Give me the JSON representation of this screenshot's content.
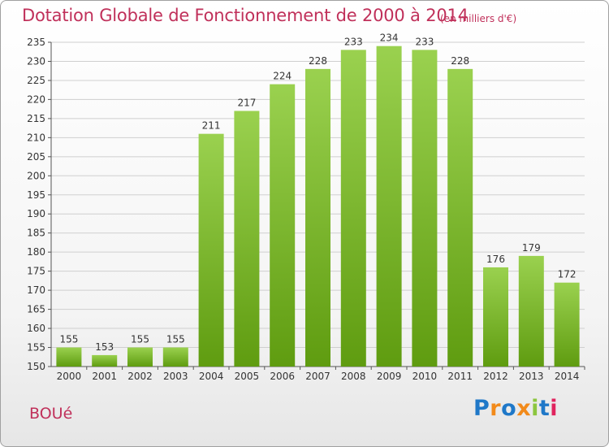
{
  "header": {
    "title": "Dotation Globale de Fonctionnement de 2000 à 2014",
    "unit": "(en milliers d'€)"
  },
  "footer": {
    "commune": "BOUé",
    "logo": "Proxiti",
    "logo_letters": [
      {
        "char": "P",
        "color": "#1f78c8"
      },
      {
        "char": "r",
        "color": "#f28a1a"
      },
      {
        "char": "o",
        "color": "#1f78c8"
      },
      {
        "char": "x",
        "color": "#f28a1a"
      },
      {
        "char": "i",
        "color": "#8cc63f"
      },
      {
        "char": "t",
        "color": "#1f78c8"
      },
      {
        "char": "i",
        "color": "#e0245e"
      }
    ]
  },
  "colors": {
    "title": "#c0305a",
    "bar_top": "#9ad14f",
    "bar_bottom": "#5f9c10",
    "grid": "#cfcfcf"
  },
  "chart_data": {
    "type": "bar",
    "title": "Dotation Globale de Fonctionnement de 2000 à 2014",
    "subtitle": "(en milliers d'€)",
    "categories": [
      "2000",
      "2001",
      "2002",
      "2003",
      "2004",
      "2005",
      "2006",
      "2007",
      "2008",
      "2009",
      "2010",
      "2011",
      "2012",
      "2013",
      "2014"
    ],
    "values": [
      155,
      153,
      155,
      155,
      211,
      217,
      224,
      228,
      233,
      234,
      233,
      228,
      176,
      179,
      172
    ],
    "xlabel": "",
    "ylabel": "",
    "ylim": [
      150,
      235
    ],
    "yticks": [
      150,
      155,
      160,
      165,
      170,
      175,
      180,
      185,
      190,
      195,
      200,
      205,
      210,
      215,
      220,
      225,
      230,
      235
    ],
    "grid": true,
    "data_labels": true
  }
}
